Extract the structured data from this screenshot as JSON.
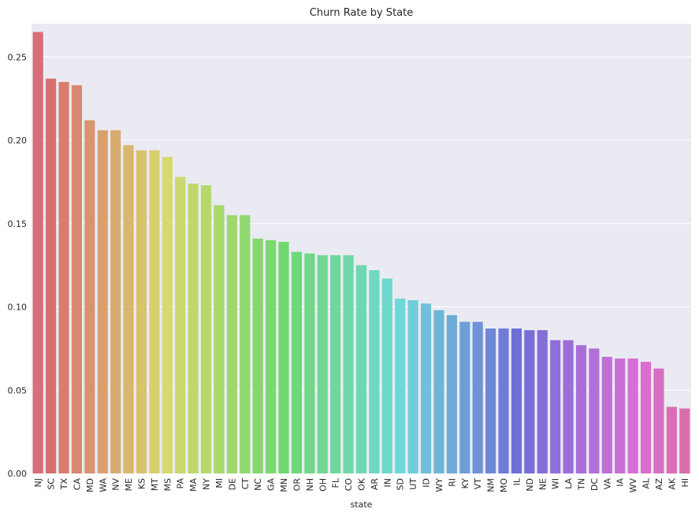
{
  "chart_data": {
    "type": "bar",
    "title": "Churn Rate by State",
    "xlabel": "state",
    "ylabel": "",
    "ylim": [
      0,
      0.27
    ],
    "yticks": [
      0.0,
      0.05,
      0.1,
      0.15,
      0.2,
      0.25
    ],
    "ytick_labels": [
      "0.00",
      "0.05",
      "0.10",
      "0.15",
      "0.20",
      "0.25"
    ],
    "grid": true,
    "categories": [
      "NJ",
      "SC",
      "TX",
      "CA",
      "MD",
      "WA",
      "NV",
      "ME",
      "KS",
      "MT",
      "MS",
      "PA",
      "MA",
      "NY",
      "MI",
      "DE",
      "CT",
      "NC",
      "GA",
      "MN",
      "OR",
      "NH",
      "OH",
      "FL",
      "CO",
      "OK",
      "AR",
      "IN",
      "SD",
      "UT",
      "ID",
      "WY",
      "RI",
      "KY",
      "VT",
      "NM",
      "MO",
      "IL",
      "ND",
      "NE",
      "WI",
      "LA",
      "TN",
      "DC",
      "VA",
      "IA",
      "WV",
      "AL",
      "AZ",
      "AK",
      "HI"
    ],
    "values": [
      0.265,
      0.237,
      0.235,
      0.233,
      0.212,
      0.206,
      0.206,
      0.197,
      0.194,
      0.194,
      0.19,
      0.178,
      0.174,
      0.173,
      0.161,
      0.155,
      0.155,
      0.141,
      0.14,
      0.139,
      0.133,
      0.132,
      0.131,
      0.131,
      0.131,
      0.125,
      0.122,
      0.117,
      0.105,
      0.104,
      0.102,
      0.098,
      0.095,
      0.091,
      0.091,
      0.087,
      0.087,
      0.087,
      0.086,
      0.086,
      0.08,
      0.08,
      0.077,
      0.075,
      0.07,
      0.069,
      0.069,
      0.067,
      0.063,
      0.04,
      0.039
    ]
  }
}
